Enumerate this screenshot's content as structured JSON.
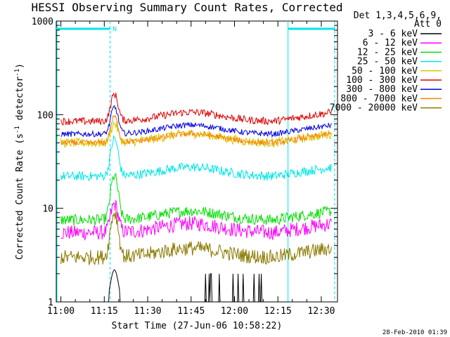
{
  "chart_data": {
    "type": "line",
    "title": "HESSI Observing Summary Count Rates, Corrected",
    "xlabel": "Start Time (27-Jun-06 10:58:22)",
    "ylabel_main": "Corrected Count Rate (s",
    "ylabel_sup1": "-1",
    "ylabel_mid": " detector",
    "ylabel_sup2": "-1",
    "ylabel_end": ")",
    "yscale": "log",
    "ylim": [
      1,
      1000
    ],
    "xlim_minutes": [
      -1.6,
      95.6
    ],
    "x_ticks": [
      "11:00",
      "11:15",
      "11:30",
      "11:45",
      "12:00",
      "12:15",
      "12:30"
    ],
    "y_ticks": [
      "1",
      "10",
      "100",
      "1000"
    ],
    "footer_date": "28-Feb-2010 01:39",
    "legend_header_1": "Det 1,3,4,5,6,9,",
    "legend_header_2": "Att 0",
    "legend_position": "right",
    "annotation_n": "N",
    "night_markers": [
      {
        "start": -1.6,
        "end": 17.0,
        "label": "N"
      },
      {
        "start": 78.5,
        "end": 94.6
      }
    ],
    "series": [
      {
        "name": "3 - 6 keV",
        "color": "#000000",
        "baseline": 1.0,
        "peak": 2.0,
        "noise": 0.0
      },
      {
        "name": "6 - 12 keV",
        "color": "#ff00ff",
        "baseline": 5.5,
        "peak": 11,
        "noise": 0.08
      },
      {
        "name": "12 - 25 keV",
        "color": "#00e000",
        "baseline": 7.5,
        "peak": 22,
        "noise": 0.06
      },
      {
        "name": "25 - 50 keV",
        "color": "#00e6e6",
        "baseline": 22,
        "peak": 55,
        "noise": 0.05
      },
      {
        "name": "50 - 100 keV",
        "color": "#d4c800",
        "baseline": 50,
        "peak": 80,
        "noise": 0.05
      },
      {
        "name": "100 - 300 keV",
        "color": "#e00000",
        "baseline": 85,
        "peak": 165,
        "noise": 0.04
      },
      {
        "name": "300 - 800 keV",
        "color": "#0000e0",
        "baseline": 62,
        "peak": 120,
        "noise": 0.03
      },
      {
        "name": "800 - 7000 keV",
        "color": "#ff8000",
        "baseline": 50,
        "peak": 95,
        "noise": 0.03
      },
      {
        "name": "7000 - 20000 keV",
        "color": "#8b7a00",
        "baseline": 3,
        "peak": 9,
        "noise": 0.08
      }
    ]
  }
}
